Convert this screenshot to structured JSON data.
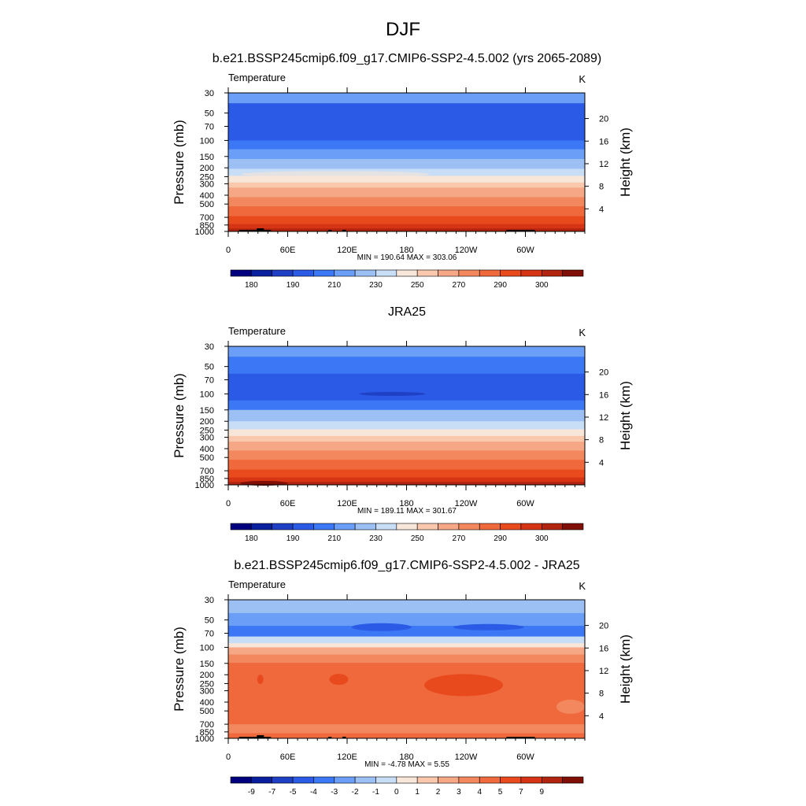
{
  "figure": {
    "title": "DJF"
  },
  "chart_data": [
    {
      "type": "heatmap",
      "title": "b.e21.BSSP245cmip6.f09_g17.CMIP6-SSP2-4.5.002 (yrs 2065-2089)",
      "variable": "Temperature",
      "units": "K",
      "ylabel": "Pressure (mb)",
      "ylabel_right": "Height (km)",
      "x_ticks": [
        "0",
        "60E",
        "120E",
        "180",
        "120W",
        "60W"
      ],
      "y_ticks": [
        "30",
        "50",
        "70",
        "100",
        "150",
        "200",
        "250",
        "300",
        "400",
        "500",
        "700",
        "850",
        "1000"
      ],
      "height_ticks": [
        "20",
        "16",
        "12",
        "8",
        "4"
      ],
      "stats": "MIN = 190.64  MAX = 303.06",
      "colorbar_labels": [
        "180",
        "190",
        "210",
        "230",
        "250",
        "270",
        "290",
        "300"
      ],
      "colorbar_colors": [
        "#00007f",
        "#0a1f9e",
        "#1f3fc4",
        "#2a5ae6",
        "#3c78f5",
        "#6a9ef7",
        "#9cc0f4",
        "#c8ddf6",
        "#f8e6d8",
        "#f9c8ad",
        "#f6a785",
        "#f3875e",
        "#f0693d",
        "#e84a1e",
        "#d63414",
        "#b02410",
        "#7f0f07"
      ],
      "min_value": 190.64,
      "max_value": 303.06,
      "terrain": true
    },
    {
      "type": "heatmap",
      "title": "JRA25",
      "variable": "Temperature",
      "units": "K",
      "ylabel": "Pressure (mb)",
      "ylabel_right": "Height (km)",
      "x_ticks": [
        "0",
        "60E",
        "120E",
        "180",
        "120W",
        "60W"
      ],
      "y_ticks": [
        "30",
        "50",
        "70",
        "100",
        "150",
        "200",
        "250",
        "300",
        "400",
        "500",
        "700",
        "850",
        "1000"
      ],
      "height_ticks": [
        "20",
        "16",
        "12",
        "8",
        "4"
      ],
      "stats": "MIN = 189.11  MAX = 301.67",
      "colorbar_labels": [
        "180",
        "190",
        "210",
        "230",
        "250",
        "270",
        "290",
        "300"
      ],
      "colorbar_colors": [
        "#00007f",
        "#0a1f9e",
        "#1f3fc4",
        "#2a5ae6",
        "#3c78f5",
        "#6a9ef7",
        "#9cc0f4",
        "#c8ddf6",
        "#f8e6d8",
        "#f9c8ad",
        "#f6a785",
        "#f3875e",
        "#f0693d",
        "#e84a1e",
        "#d63414",
        "#b02410",
        "#7f0f07"
      ],
      "min_value": 189.11,
      "max_value": 301.67,
      "terrain": false
    },
    {
      "type": "heatmap",
      "title": "b.e21.BSSP245cmip6.f09_g17.CMIP6-SSP2-4.5.002 - JRA25",
      "variable": "Temperature",
      "units": "K",
      "ylabel": "Pressure (mb)",
      "ylabel_right": "Height (km)",
      "x_ticks": [
        "0",
        "60E",
        "120E",
        "180",
        "120W",
        "60W"
      ],
      "y_ticks": [
        "30",
        "50",
        "70",
        "100",
        "150",
        "200",
        "250",
        "300",
        "400",
        "500",
        "700",
        "850",
        "1000"
      ],
      "height_ticks": [
        "20",
        "16",
        "12",
        "8",
        "4"
      ],
      "stats": "MIN =  -4.78  MAX =   5.55",
      "colorbar_labels": [
        "-9",
        "-7",
        "-5",
        "-4",
        "-3",
        "-2",
        "-1",
        "0",
        "1",
        "2",
        "3",
        "4",
        "5",
        "7",
        "9"
      ],
      "colorbar_colors": [
        "#00007f",
        "#0a1f9e",
        "#1f3fc4",
        "#2a5ae6",
        "#3c78f5",
        "#6a9ef7",
        "#9cc0f4",
        "#c8ddf6",
        "#f8e6d8",
        "#f9c8ad",
        "#f6a785",
        "#f3875e",
        "#f0693d",
        "#e84a1e",
        "#d63414",
        "#b02410",
        "#7f0f07"
      ],
      "min_value": -4.78,
      "max_value": 5.55,
      "terrain": true
    }
  ]
}
